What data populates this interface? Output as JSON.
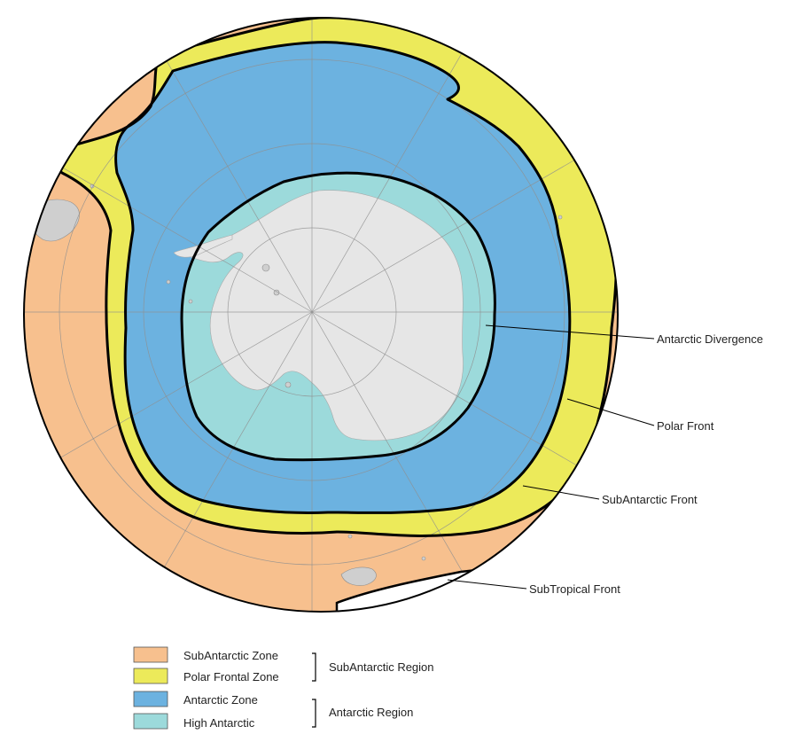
{
  "colors": {
    "subantarctic_zone": "#f7c08e",
    "polar_frontal_zone": "#ecea5a",
    "antarctic_zone": "#6cb2e0",
    "high_antarctic": "#9cdadb",
    "land": "#e6e6e6",
    "front_line": "#000000",
    "graticule": "#8f8f8f"
  },
  "map": {
    "projection": "south-polar-stereographic",
    "center": "south-pole",
    "graticule": true
  },
  "fronts": [
    {
      "id": "antarctic-divergence",
      "label": "Antarctic Divergence"
    },
    {
      "id": "polar-front",
      "label": "Polar Front"
    },
    {
      "id": "subantarctic-front",
      "label": "SubAntarctic Front"
    },
    {
      "id": "subtropical-front",
      "label": "SubTropical Front"
    }
  ],
  "legend": {
    "items": [
      {
        "id": "subantarctic-zone",
        "label": "SubAntarctic Zone",
        "color": "#f7c08e"
      },
      {
        "id": "polar-frontal-zone",
        "label": "Polar Frontal Zone",
        "color": "#ecea5a"
      },
      {
        "id": "antarctic-zone",
        "label": "Antarctic Zone",
        "color": "#6cb2e0"
      },
      {
        "id": "high-antarctic",
        "label": "High Antarctic",
        "color": "#9cdadb"
      }
    ],
    "groups": [
      {
        "id": "subantarctic-region",
        "label": "SubAntarctic Region"
      },
      {
        "id": "antarctic-region",
        "label": "Antarctic Region"
      }
    ]
  }
}
